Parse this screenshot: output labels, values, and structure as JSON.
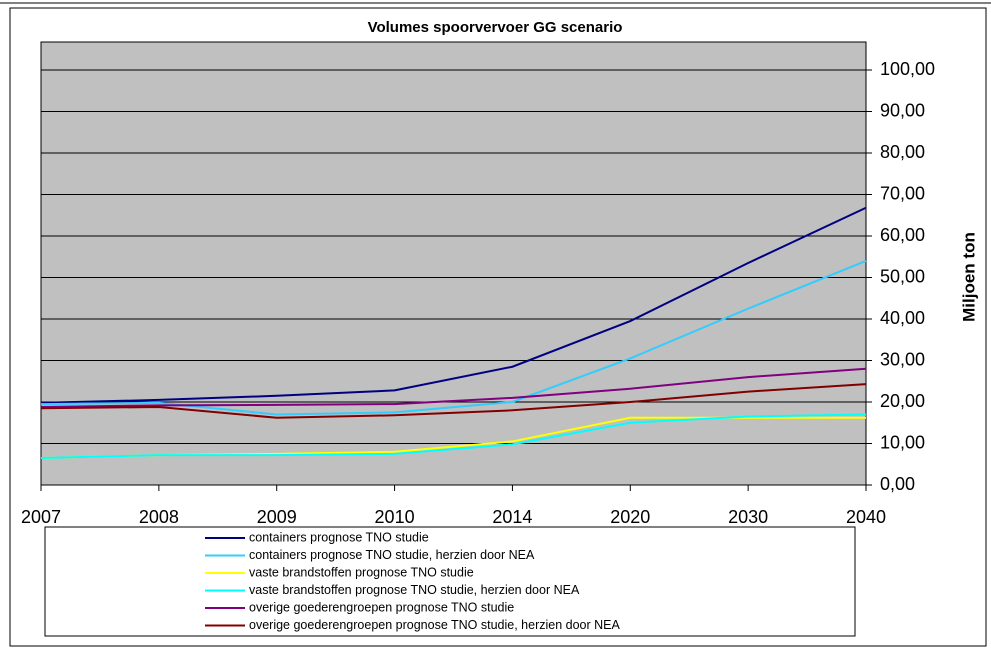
{
  "chart_data": {
    "type": "line",
    "title": "Volumes spoorvervoer GG scenario",
    "y_axis_label": "Miljoen ton",
    "categories": [
      "2007",
      "2008",
      "2009",
      "2010",
      "2014",
      "2020",
      "2030",
      "2040"
    ],
    "series": [
      {
        "name": "containers prognose TNO studie",
        "color": "#000080",
        "values": [
          19.8,
          20.5,
          21.5,
          22.8,
          28.5,
          39.5,
          53.5,
          66.8
        ]
      },
      {
        "name": "containers prognose TNO studie, herzien door NEA",
        "color": "#33CCFF",
        "values": [
          19.5,
          19.8,
          17.0,
          17.5,
          20.0,
          30.5,
          42.5,
          54.0
        ]
      },
      {
        "name": "vaste brandstoffen prognose TNO studie",
        "color": "#FFFF00",
        "values": [
          6.5,
          7.2,
          7.5,
          8.0,
          10.5,
          16.2,
          16.2,
          16.2
        ]
      },
      {
        "name": "vaste brandstoffen prognose TNO studie, herzien door NEA",
        "color": "#00FFFF",
        "values": [
          6.5,
          7.2,
          7.2,
          7.5,
          9.8,
          15.0,
          16.5,
          17.0
        ]
      },
      {
        "name": "overige goederengroepen prognose TNO studie",
        "color": "#800080",
        "values": [
          18.8,
          19.2,
          19.3,
          19.5,
          21.0,
          23.2,
          26.0,
          28.0
        ]
      },
      {
        "name": "overige goederengroepen prognose TNO studie, herzien door NEA",
        "color": "#800000",
        "values": [
          18.5,
          18.8,
          16.2,
          16.8,
          18.0,
          20.0,
          22.5,
          24.3
        ]
      }
    ],
    "ylim": [
      0,
      100
    ],
    "yticks": [
      {
        "value": 0,
        "label": "0,00"
      },
      {
        "value": 10,
        "label": "10,00"
      },
      {
        "value": 20,
        "label": "20,00"
      },
      {
        "value": 30,
        "label": "30,00"
      },
      {
        "value": 40,
        "label": "40,00"
      },
      {
        "value": 50,
        "label": "50,00"
      },
      {
        "value": 60,
        "label": "60,00"
      },
      {
        "value": 70,
        "label": "70,00"
      },
      {
        "value": 80,
        "label": "80,00"
      },
      {
        "value": 90,
        "label": "90,00"
      },
      {
        "value": 100,
        "label": "100,00"
      }
    ],
    "grid": true,
    "legend": "bottom",
    "plot_background": "#C0C0C0"
  }
}
